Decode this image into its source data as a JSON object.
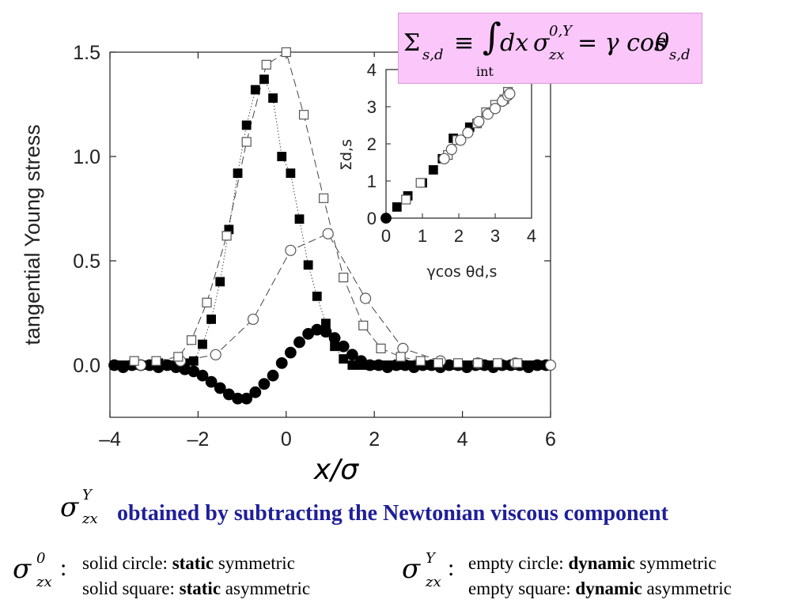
{
  "chart_data": [
    {
      "type": "scatter",
      "title": "",
      "xlabel": "x/σ",
      "ylabel": "tangential Young stress",
      "xlim": [
        -4,
        6
      ],
      "ylim": [
        -0.25,
        1.5
      ],
      "x_ticks": [
        -4,
        -2,
        0,
        2,
        4,
        6
      ],
      "x_tick_labels": [
        "–4",
        "–2",
        "0",
        "2",
        "4",
        "6"
      ],
      "y_ticks": [
        0.0,
        0.5,
        1.0,
        1.5
      ],
      "y_tick_labels": [
        "0.0",
        "0.5",
        "1.0",
        "1.5"
      ],
      "grid": false,
      "series": [
        {
          "marker": "filled-circle",
          "line": "none",
          "x": [
            -3.9,
            -3.7,
            -3.5,
            -3.3,
            -3.1,
            -2.9,
            -2.7,
            -2.5,
            -2.3,
            -2.1,
            -1.9,
            -1.7,
            -1.5,
            -1.3,
            -1.1,
            -0.9,
            -0.7,
            -0.5,
            -0.3,
            -0.1,
            0.1,
            0.3,
            0.5,
            0.7,
            0.9,
            1.1,
            1.3,
            1.5,
            1.7,
            1.9,
            2.1,
            2.3,
            2.5,
            2.7,
            2.9,
            3.1,
            3.3,
            3.5,
            3.7,
            3.9,
            4.1,
            4.3,
            4.5,
            4.7,
            4.9,
            5.1,
            5.3,
            5.5,
            5.7,
            5.9
          ],
          "y": [
            0.0,
            -0.01,
            0.0,
            0.0,
            0.0,
            -0.01,
            0.0,
            -0.01,
            -0.02,
            -0.03,
            -0.05,
            -0.08,
            -0.11,
            -0.14,
            -0.16,
            -0.16,
            -0.13,
            -0.09,
            -0.05,
            0.01,
            0.06,
            0.11,
            0.15,
            0.17,
            0.16,
            0.13,
            0.09,
            0.05,
            0.02,
            0.0,
            0.0,
            -0.01,
            0.0,
            0.0,
            -0.01,
            0.0,
            0.0,
            -0.01,
            0.0,
            0.0,
            -0.01,
            0.0,
            0.0,
            -0.01,
            0.0,
            0.0,
            0.0,
            -0.01,
            0.0,
            0.0
          ]
        },
        {
          "marker": "filled-square",
          "line": "dotted",
          "x": [
            -3.9,
            -3.7,
            -3.5,
            -3.3,
            -3.1,
            -2.9,
            -2.7,
            -2.5,
            -2.3,
            -2.1,
            -1.9,
            -1.7,
            -1.5,
            -1.3,
            -1.1,
            -0.9,
            -0.7,
            -0.5,
            -0.3,
            -0.1,
            0.1,
            0.3,
            0.5,
            0.7,
            0.9,
            1.1,
            1.3,
            1.5,
            1.7,
            1.9,
            2.1,
            2.3,
            2.5,
            2.7,
            2.9,
            3.1,
            3.3,
            3.5,
            3.7,
            3.9,
            4.1,
            4.3,
            4.5,
            4.7,
            4.9,
            5.1,
            5.3,
            5.5,
            5.7,
            5.9
          ],
          "y": [
            0.0,
            0.0,
            0.0,
            0.0,
            0.0,
            0.01,
            0.0,
            0.0,
            0.01,
            0.02,
            0.1,
            0.22,
            0.4,
            0.65,
            0.92,
            1.15,
            1.32,
            1.37,
            1.28,
            1.0,
            0.92,
            0.7,
            0.48,
            0.33,
            0.2,
            0.09,
            0.03,
            0.0,
            0.0,
            0.0,
            0.0,
            0.0,
            0.0,
            0.0,
            0.0,
            0.0,
            0.0,
            0.0,
            0.0,
            0.0,
            0.0,
            0.0,
            0.0,
            0.0,
            0.0,
            0.0,
            0.0,
            0.0,
            0.0,
            0.0
          ]
        },
        {
          "marker": "open-circle",
          "line": "long-dash",
          "x": [
            -3.3,
            -2.4,
            -1.6,
            -0.75,
            0.1,
            0.95,
            1.8,
            2.65,
            3.5,
            4.35,
            5.2,
            6.0
          ],
          "y": [
            0.0,
            0.02,
            0.05,
            0.22,
            0.55,
            0.63,
            0.32,
            0.08,
            0.02,
            0.01,
            0.01,
            0.0
          ],
          "aside": "placed with the inset"
        },
        {
          "marker": "open-square",
          "line": "long-dash",
          "x": [
            -3.45,
            -2.95,
            -2.45,
            -2.15,
            -1.8,
            -1.35,
            -0.9,
            -0.45,
            0.0,
            0.4,
            0.85,
            1.3,
            1.75,
            2.15,
            2.6,
            3.05,
            3.45,
            3.9,
            4.35,
            4.8,
            5.25
          ],
          "y": [
            0.02,
            0.02,
            0.04,
            0.12,
            0.3,
            0.62,
            1.07,
            1.44,
            1.5,
            1.2,
            0.8,
            0.42,
            0.19,
            0.08,
            0.04,
            0.02,
            0.01,
            0.01,
            0.01,
            0.01,
            0.01
          ]
        }
      ]
    },
    {
      "type": "scatter",
      "title": "",
      "xlabel": "γcos θd,s",
      "ylabel": "Σd,s",
      "xlim": [
        0,
        4
      ],
      "ylim": [
        0,
        4
      ],
      "x_ticks": [
        0,
        1,
        2,
        3,
        4
      ],
      "y_ticks": [
        0,
        1,
        2,
        3,
        4
      ],
      "tick_labels": [
        "0",
        "1",
        "2",
        "3",
        "4"
      ],
      "grid": false,
      "series": [
        {
          "marker": "filled-circle",
          "x": [
            0.0
          ],
          "y": [
            0.0
          ]
        },
        {
          "marker": "filled-square",
          "x": [
            0.3,
            0.6,
            1.0,
            1.3,
            1.55,
            1.85,
            2.3
          ],
          "y": [
            0.3,
            0.6,
            0.95,
            1.3,
            1.6,
            2.15,
            2.45
          ]
        },
        {
          "marker": "open-square",
          "x": [
            0.55,
            0.95,
            1.7,
            1.95,
            2.5,
            2.75,
            3.0,
            3.25,
            3.35
          ],
          "y": [
            0.5,
            0.95,
            1.7,
            2.1,
            2.55,
            2.85,
            3.05,
            3.2,
            3.4
          ]
        },
        {
          "marker": "open-circle",
          "x": [
            1.6,
            1.8,
            2.05,
            2.25,
            2.55,
            2.8,
            3.0,
            3.2,
            3.35,
            3.4
          ],
          "y": [
            1.6,
            1.85,
            2.1,
            2.3,
            2.6,
            2.8,
            2.95,
            3.15,
            3.3,
            3.35
          ]
        }
      ]
    }
  ],
  "formula": {
    "lhs": "Σ",
    "lhs_sub": "s,d",
    "equiv": "≡",
    "integral": "∫",
    "int_sub": "int",
    "dx": "dx",
    "sigma": "σ",
    "sigma_sup": "0,Y",
    "sigma_sub": "zx",
    "rhs": "= γ cos",
    "theta": "θ",
    "theta_sub": "s,d"
  },
  "caption": {
    "sigma": "σ",
    "sup": "Y",
    "sub": "zx",
    "text": "obtained by subtracting the Newtonian viscous component"
  },
  "legend_left": {
    "sigma": "σ",
    "sup": "0",
    "sub": "zx",
    "colon": ":",
    "line1_a": "solid circle: ",
    "line1_b": "static",
    "line1_c": " symmetric",
    "line2_a": "solid square: ",
    "line2_b": "static",
    "line2_c": " asymmetric"
  },
  "legend_right": {
    "sigma": "σ",
    "sup": "Y",
    "sub": "zx",
    "colon": ":",
    "line1_a": "empty circle: ",
    "line1_b": "dynamic",
    "line1_c": " symmetric",
    "line2_a": "empty square: ",
    "line2_b": "dynamic",
    "line2_c": " asymmetric"
  }
}
